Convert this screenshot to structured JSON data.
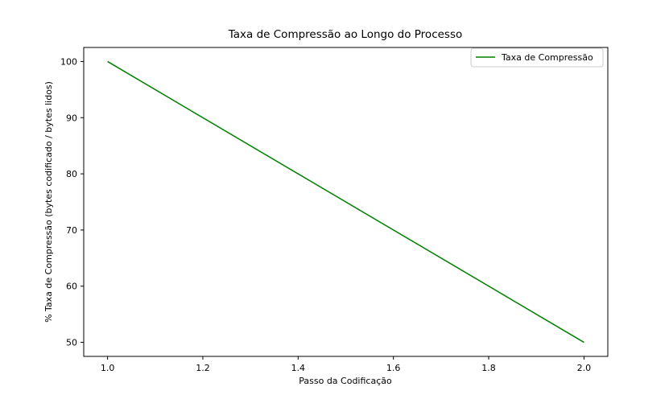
{
  "chart_data": {
    "type": "line",
    "title": "Taxa de Compressão ao Longo do Processo",
    "xlabel": "Passo da Codificação",
    "ylabel": "% Taxa de Compressão (bytes codificado / bytes lidos)",
    "x": [
      1.0,
      2.0
    ],
    "series": [
      {
        "name": "Taxa de Compressão",
        "values": [
          100,
          50
        ],
        "color": "#008000"
      }
    ],
    "xlim": [
      0.95,
      2.05
    ],
    "ylim": [
      47.5,
      102.5
    ],
    "xticks": [
      1.0,
      1.2,
      1.4,
      1.6,
      1.8,
      2.0
    ],
    "xtick_labels": [
      "1.0",
      "1.2",
      "1.4",
      "1.6",
      "1.8",
      "2.0"
    ],
    "yticks": [
      50,
      60,
      70,
      80,
      90,
      100
    ],
    "ytick_labels": [
      "50",
      "60",
      "70",
      "80",
      "90",
      "100"
    ],
    "grid": false,
    "legend_position": "top-right"
  }
}
